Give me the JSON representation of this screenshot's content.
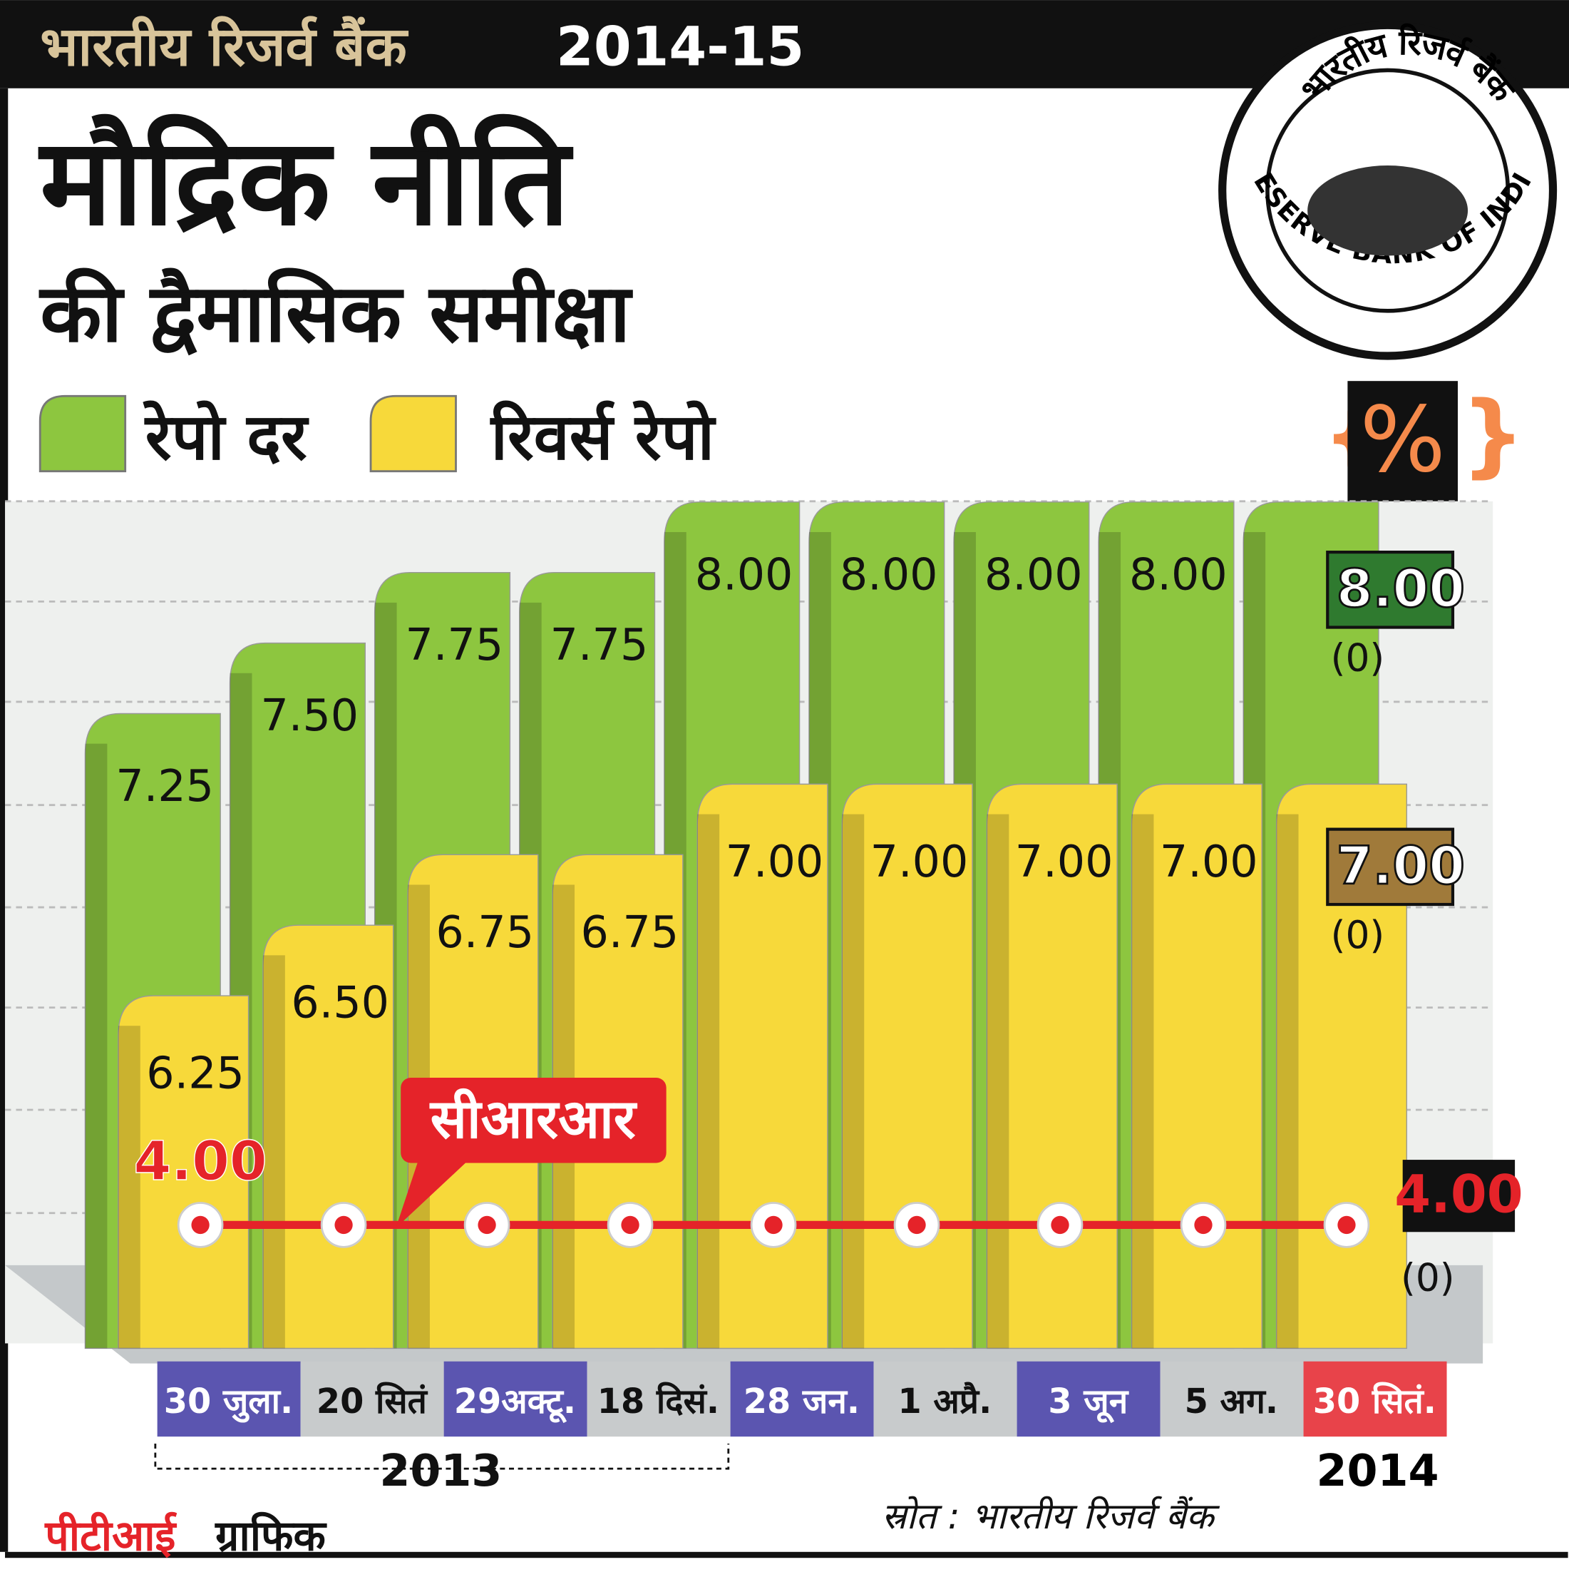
{
  "header": {
    "org": "भारतीय रिजर्व बैंक",
    "period": "2014-15"
  },
  "logo": {
    "hindi": "भारतीय रिजर्व बैंक",
    "english": "RESERVE BANK OF INDIA"
  },
  "chart_data": {
    "type": "bar",
    "title": "मौद्रिक नीति",
    "subtitle": "की द्वैमासिक समीक्षा",
    "unit": "%",
    "categories": [
      "30 जुला.",
      "20 सितं",
      "29अक्टू.",
      "18 दिसं.",
      "28 जन.",
      "1 अप्रै.",
      "3 जून",
      "5 अग.",
      "30 सितं."
    ],
    "years": [
      "2013",
      "2014"
    ],
    "ylim": [
      5,
      8.5
    ],
    "y2lim": [
      0,
      32
    ],
    "series": [
      {
        "name": "रेपो दर",
        "color": "#8dc63f",
        "values": [
          7.25,
          7.5,
          7.75,
          7.75,
          8,
          8,
          8,
          8,
          8
        ],
        "value_labels": [
          "7.25",
          "7.50",
          "7.75",
          "7.75",
          "8.00",
          "8.00",
          "8.00",
          "8.00",
          "8.00"
        ],
        "change": "(0)"
      },
      {
        "name": "रिवर्स रेपो",
        "color": "#f7d93a",
        "values": [
          6.25,
          6.5,
          6.75,
          6.75,
          7,
          7,
          7,
          7,
          7
        ],
        "value_labels": [
          "6.25",
          "6.50",
          "6.75",
          "6.75",
          "7.00",
          "7.00",
          "7.00",
          "7.00",
          "7.00"
        ],
        "change": "(0)"
      },
      {
        "name": "सीआरआर",
        "color": "#e52329",
        "axis": "y2",
        "type": "line",
        "values": [
          4,
          4,
          4,
          4,
          4,
          4,
          4,
          4,
          4
        ],
        "value_labels": [
          "4.00",
          null,
          null,
          null,
          null,
          null,
          null,
          null,
          "4.00"
        ],
        "change": "(0)"
      }
    ],
    "source": "स्रोत : भारतीय रिजर्व बैंक"
  },
  "credit": {
    "agency": "पीटीआई",
    "word": "ग्राफिक"
  }
}
